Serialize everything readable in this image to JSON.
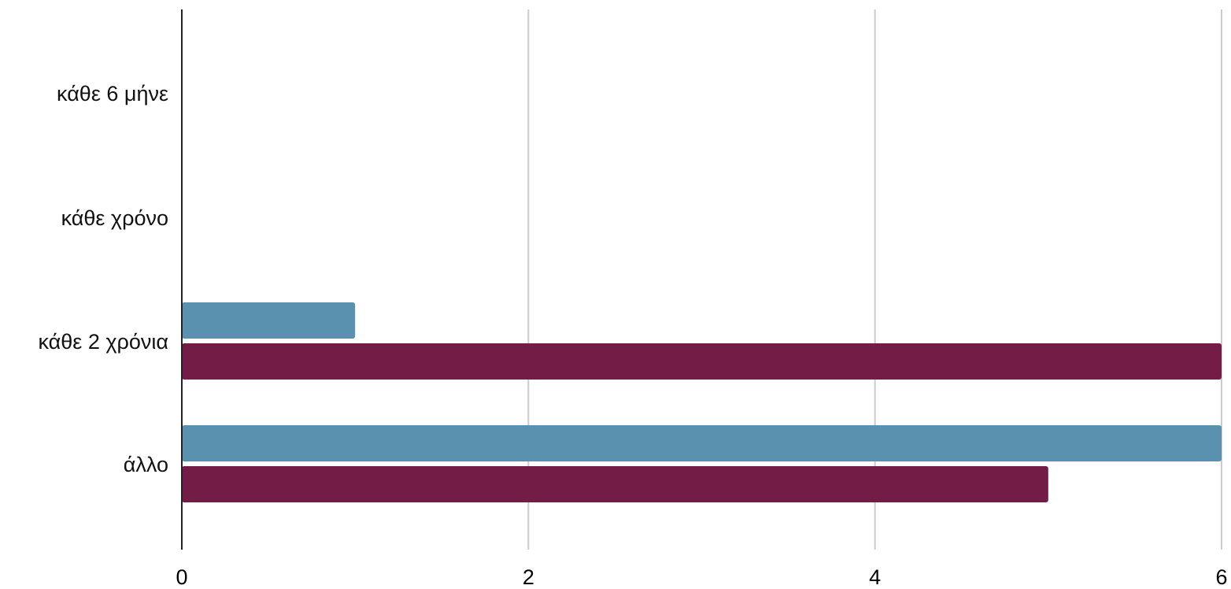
{
  "chart_data": {
    "type": "bar",
    "orientation": "horizontal",
    "categories": [
      "κάθε 6 μήνε",
      "κάθε χρόνο",
      "κάθε 2 χρόνια",
      "άλλο"
    ],
    "series": [
      {
        "values": [
          0,
          0,
          1,
          6
        ],
        "color": "#5a91ae"
      },
      {
        "values": [
          0,
          0,
          6,
          5
        ],
        "color": "#731c45"
      }
    ],
    "xlim": [
      0,
      6
    ],
    "xticks": [
      "0",
      "2",
      "4",
      "6"
    ],
    "grid": true,
    "legend": "none"
  }
}
